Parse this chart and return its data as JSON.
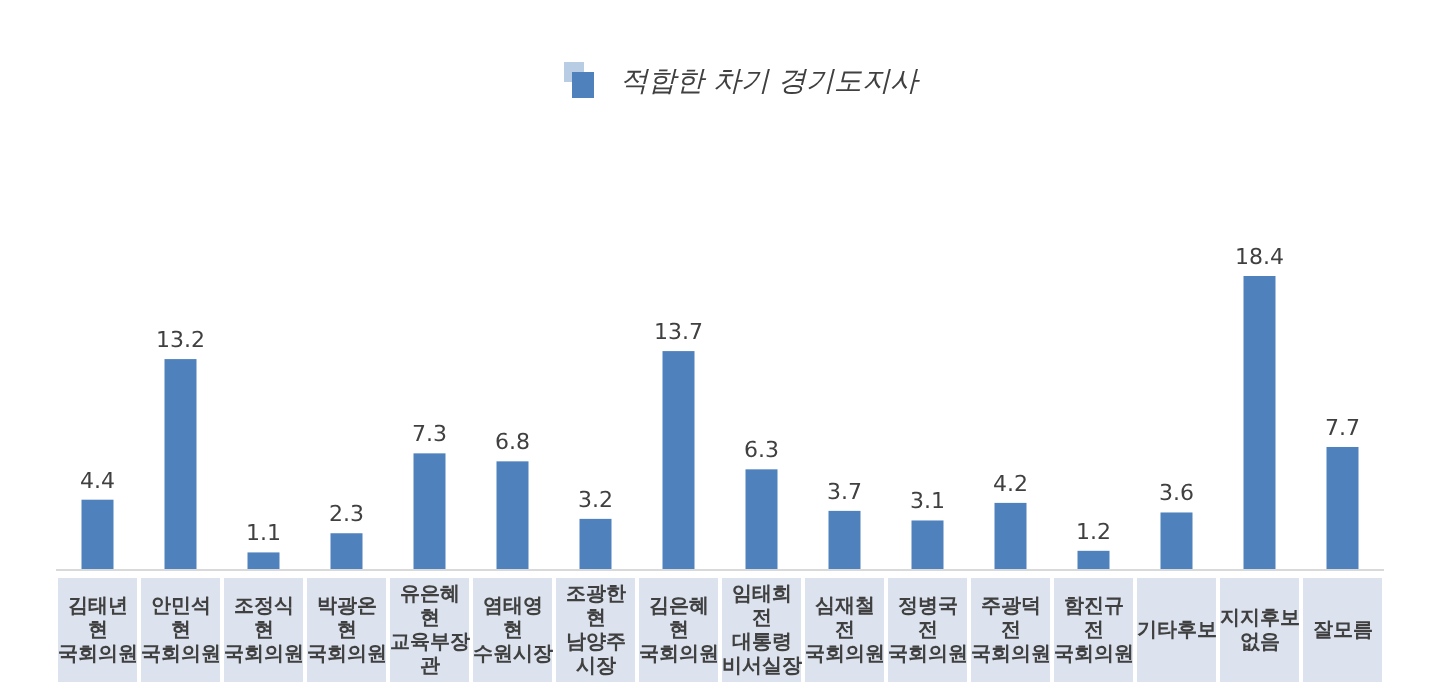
{
  "chart_data": {
    "type": "bar",
    "categories": [
      "김태년 현 국회의원",
      "안민석 현 국회의원",
      "조정식 현 국회의원",
      "박광온 현 국회의원",
      "유은혜 현 교육부장관",
      "염태영 현 수원시장",
      "조광한 현 남양주 시장",
      "김은혜 현 국회의원",
      "임태희 전 대통령 비서실장",
      "심재철 전 국회의원",
      "정병국 전 국회의원",
      "주광덕 전 국회의원",
      "함진규 전 국회의원",
      "기타후보",
      "지지후보없음",
      "잘모름"
    ],
    "series": [
      {
        "name": "적합한 차기 경기도지사",
        "color": "#4f81bd",
        "values": [
          4.4,
          13.2,
          1.1,
          2.3,
          7.3,
          6.8,
          3.2,
          13.7,
          6.3,
          3.7,
          3.1,
          4.2,
          1.2,
          3.6,
          18.4,
          7.7
        ]
      }
    ],
    "data_labels": true,
    "legend": "top"
  }
}
